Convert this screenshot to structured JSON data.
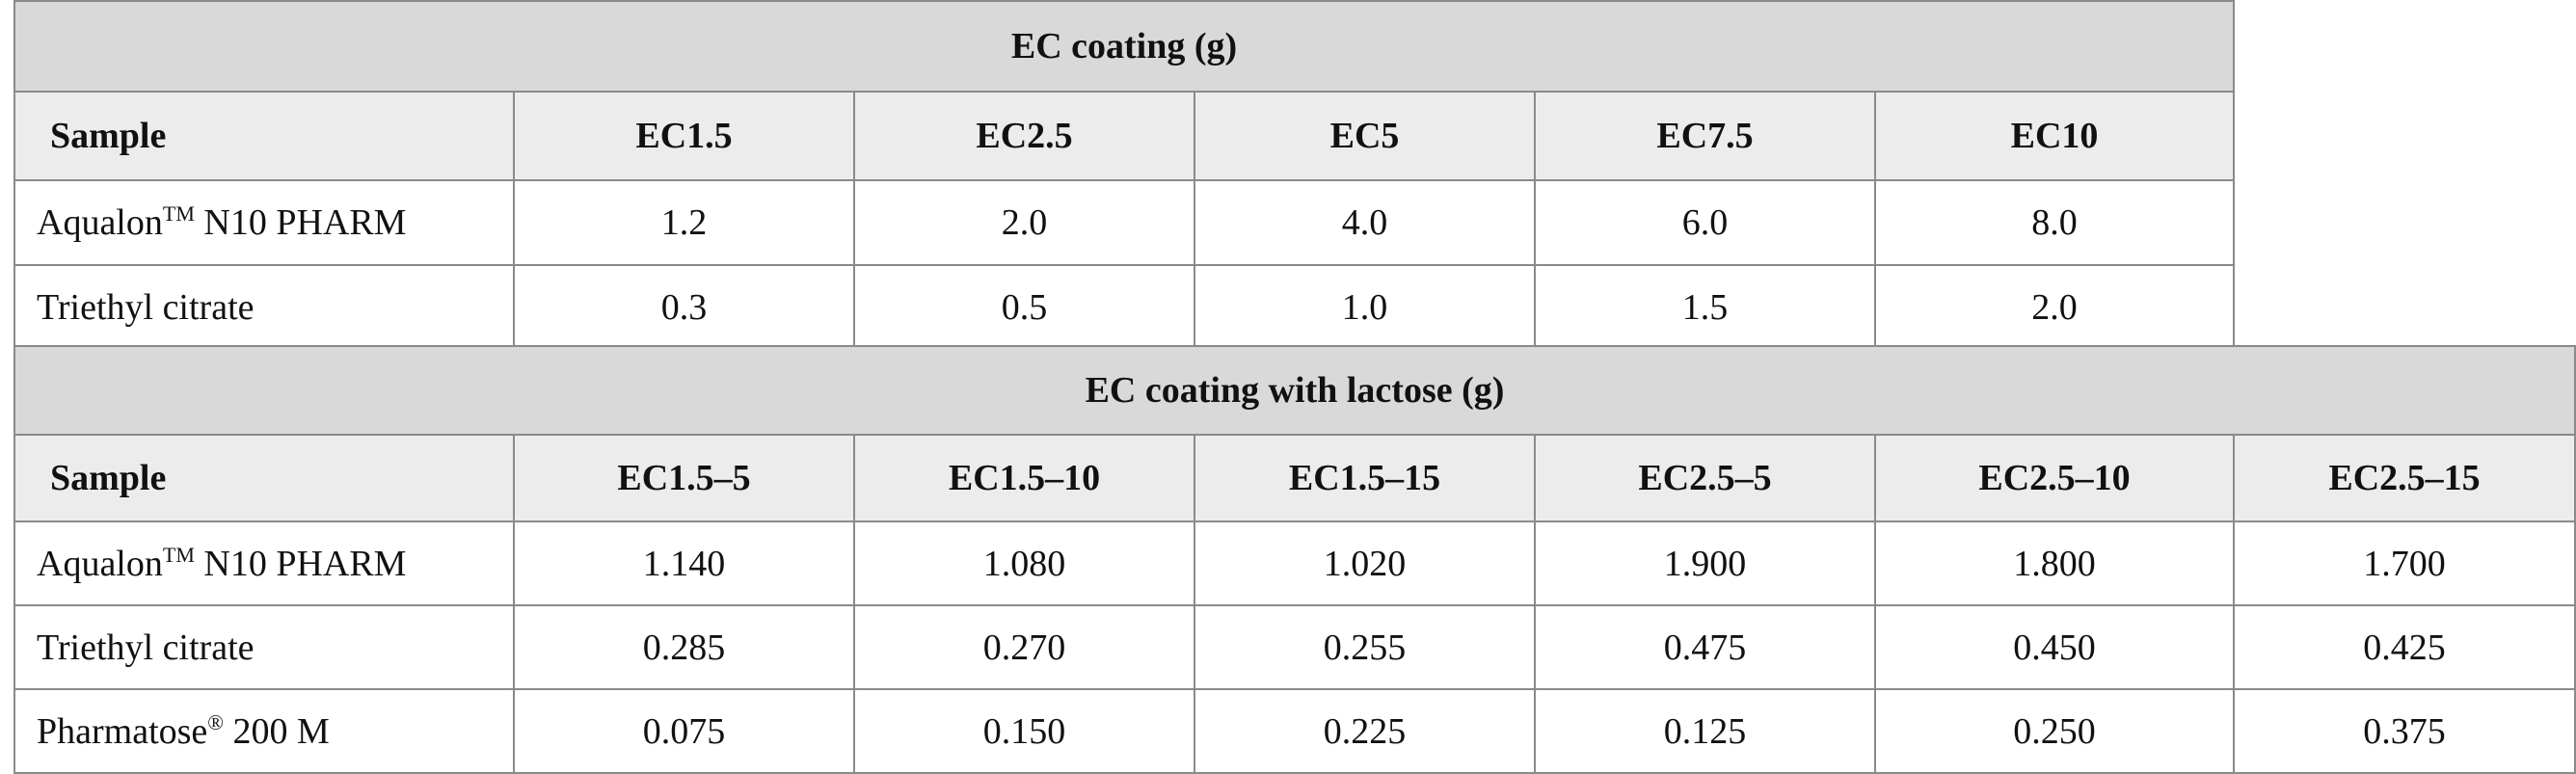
{
  "table1": {
    "title": "EC coating (g)",
    "headers": [
      "Sample",
      "EC1.5",
      "EC2.5",
      "EC5",
      "EC7.5",
      "EC10"
    ],
    "rows": [
      {
        "label": "Aqualon",
        "label_sup": "TM",
        "label_rest": " N10 PHARM",
        "values": [
          "1.2",
          "2.0",
          "4.0",
          "6.0",
          "8.0"
        ]
      },
      {
        "label": "Triethyl citrate",
        "label_sup": "",
        "label_rest": "",
        "values": [
          "0.3",
          "0.5",
          "1.0",
          "1.5",
          "2.0"
        ]
      }
    ]
  },
  "table2": {
    "title": "EC coating with lactose (g)",
    "headers": [
      "Sample",
      "EC1.5–5",
      "EC1.5–10",
      "EC1.5–15",
      "EC2.5–5",
      "EC2.5–10",
      "EC2.5–15"
    ],
    "rows": [
      {
        "label": "Aqualon",
        "label_sup": "TM",
        "label_rest": " N10 PHARM",
        "values": [
          "1.140",
          "1.080",
          "1.020",
          "1.900",
          "1.800",
          "1.700"
        ]
      },
      {
        "label": "Triethyl citrate",
        "label_sup": "",
        "label_rest": "",
        "values": [
          "0.285",
          "0.270",
          "0.255",
          "0.475",
          "0.450",
          "0.425"
        ]
      },
      {
        "label": "Pharmatose",
        "label_sup": "®",
        "label_rest": " 200 M",
        "values": [
          "0.075",
          "0.150",
          "0.225",
          "0.125",
          "0.250",
          "0.375"
        ]
      }
    ]
  }
}
